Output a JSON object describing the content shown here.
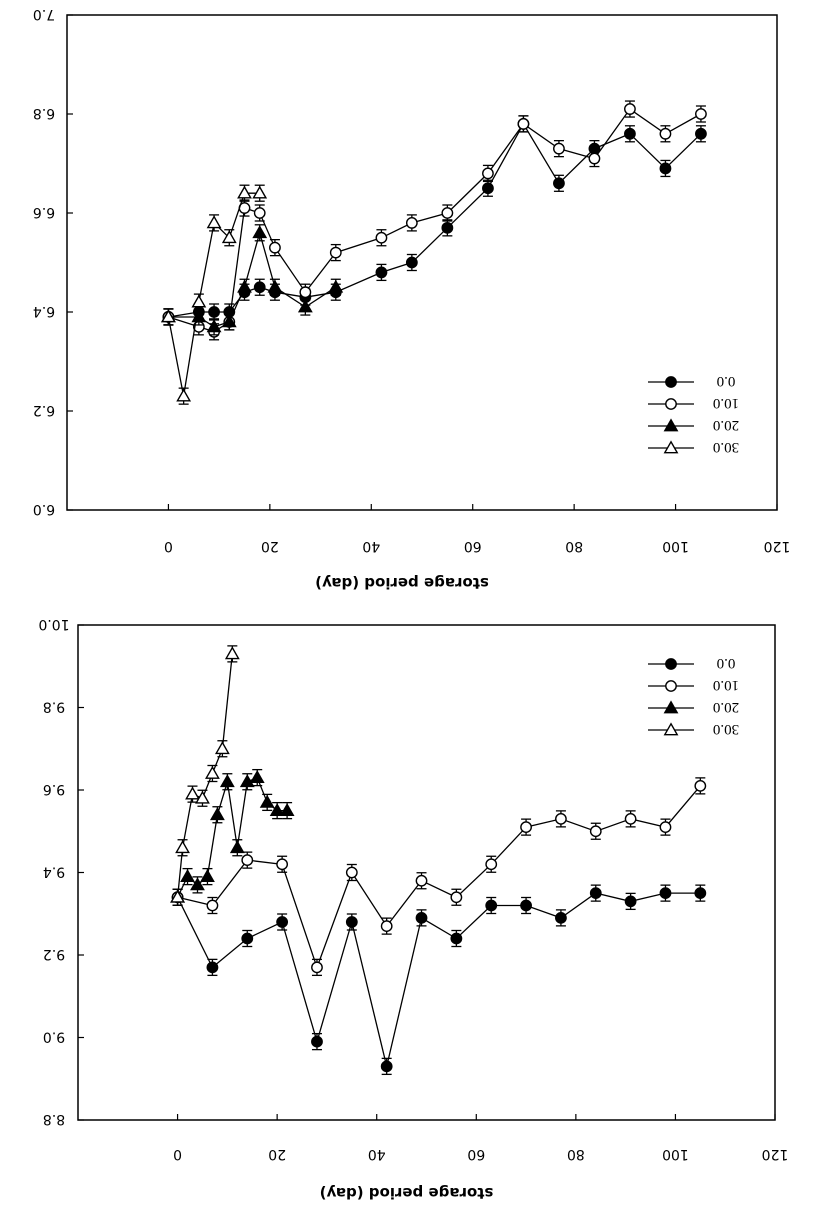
{
  "chart_data": [
    {
      "type": "line",
      "xlabel": "storage period (day)",
      "xlim": [
        -20,
        120
      ],
      "ylim": [
        6.0,
        7.0
      ],
      "xticks": [
        "0",
        "20",
        "40",
        "60",
        "80",
        "100",
        "120"
      ],
      "yticks": [
        "6.0",
        "6.2",
        "6.4",
        "6.6",
        "6.8",
        "7.0"
      ],
      "legend_position": "bottom-right",
      "grid": false,
      "series": [
        {
          "name": "0.0",
          "marker": "filled-circle",
          "x": [
            0,
            6,
            9,
            12,
            15,
            18,
            21,
            27,
            33,
            42,
            48,
            55,
            63,
            70,
            77,
            84,
            91,
            98,
            105
          ],
          "y": [
            6.39,
            6.4,
            6.4,
            6.4,
            6.44,
            6.45,
            6.44,
            6.43,
            6.44,
            6.48,
            6.5,
            6.57,
            6.65,
            6.78,
            6.66,
            6.73,
            6.76,
            6.69,
            6.76
          ]
        },
        {
          "name": "10.0",
          "marker": "open-circle",
          "x": [
            0,
            6,
            9,
            12,
            15,
            18,
            21,
            27,
            33,
            42,
            48,
            55,
            63,
            70,
            77,
            84,
            91,
            98,
            105
          ],
          "y": [
            6.39,
            6.37,
            6.36,
            6.38,
            6.61,
            6.6,
            6.53,
            6.44,
            6.52,
            6.55,
            6.58,
            6.6,
            6.68,
            6.78,
            6.73,
            6.71,
            6.81,
            6.76,
            6.8
          ]
        },
        {
          "name": "20.0",
          "marker": "filled-triangle",
          "x": [
            0,
            6,
            9,
            12,
            15,
            18,
            21,
            27,
            33
          ],
          "y": [
            6.39,
            6.39,
            6.37,
            6.38,
            6.45,
            6.56,
            6.45,
            6.41,
            6.45
          ]
        },
        {
          "name": "30.0",
          "marker": "open-triangle",
          "x": [
            0,
            3,
            6,
            9,
            12,
            15,
            18
          ],
          "y": [
            6.39,
            6.23,
            6.42,
            6.58,
            6.55,
            6.64,
            6.64
          ]
        }
      ]
    },
    {
      "type": "line",
      "xlabel": "storage period (day)",
      "xlim": [
        -20,
        120
      ],
      "ylim": [
        8.8,
        10.0
      ],
      "xticks": [
        "0",
        "20",
        "40",
        "60",
        "80",
        "100",
        "120"
      ],
      "yticks": [
        "8.8",
        "9.0",
        "9.2",
        "9.4",
        "9.6",
        "9.8",
        "10.0"
      ],
      "legend_position": "top-right",
      "grid": false,
      "series": [
        {
          "name": "0.0",
          "marker": "filled-circle",
          "x": [
            0,
            7,
            14,
            21,
            28,
            35,
            42,
            49,
            56,
            63,
            70,
            77,
            84,
            91,
            98,
            105
          ],
          "y": [
            9.34,
            9.17,
            9.24,
            9.28,
            8.99,
            9.28,
            8.93,
            9.29,
            9.24,
            9.32,
            9.32,
            9.29,
            9.35,
            9.33,
            9.35,
            9.35
          ]
        },
        {
          "name": "10.0",
          "marker": "open-circle",
          "x": [
            0,
            7,
            14,
            21,
            28,
            35,
            42,
            49,
            56,
            63,
            70,
            77,
            84,
            91,
            98,
            105
          ],
          "y": [
            9.34,
            9.32,
            9.43,
            9.42,
            9.17,
            9.4,
            9.27,
            9.38,
            9.34,
            9.42,
            9.51,
            9.53,
            9.5,
            9.53,
            9.51,
            9.61
          ]
        },
        {
          "name": "20.0",
          "marker": "filled-triangle",
          "x": [
            0,
            2,
            4,
            6,
            8,
            10,
            12,
            14,
            16,
            18,
            20,
            22
          ],
          "y": [
            9.34,
            9.39,
            9.37,
            9.39,
            9.54,
            9.62,
            9.46,
            9.62,
            9.63,
            9.57,
            9.55,
            9.55
          ]
        },
        {
          "name": "30.0",
          "marker": "open-triangle",
          "x": [
            0,
            1,
            3,
            5,
            7,
            9,
            11
          ],
          "y": [
            9.34,
            9.46,
            9.59,
            9.58,
            9.64,
            9.7,
            9.93
          ]
        }
      ]
    }
  ]
}
